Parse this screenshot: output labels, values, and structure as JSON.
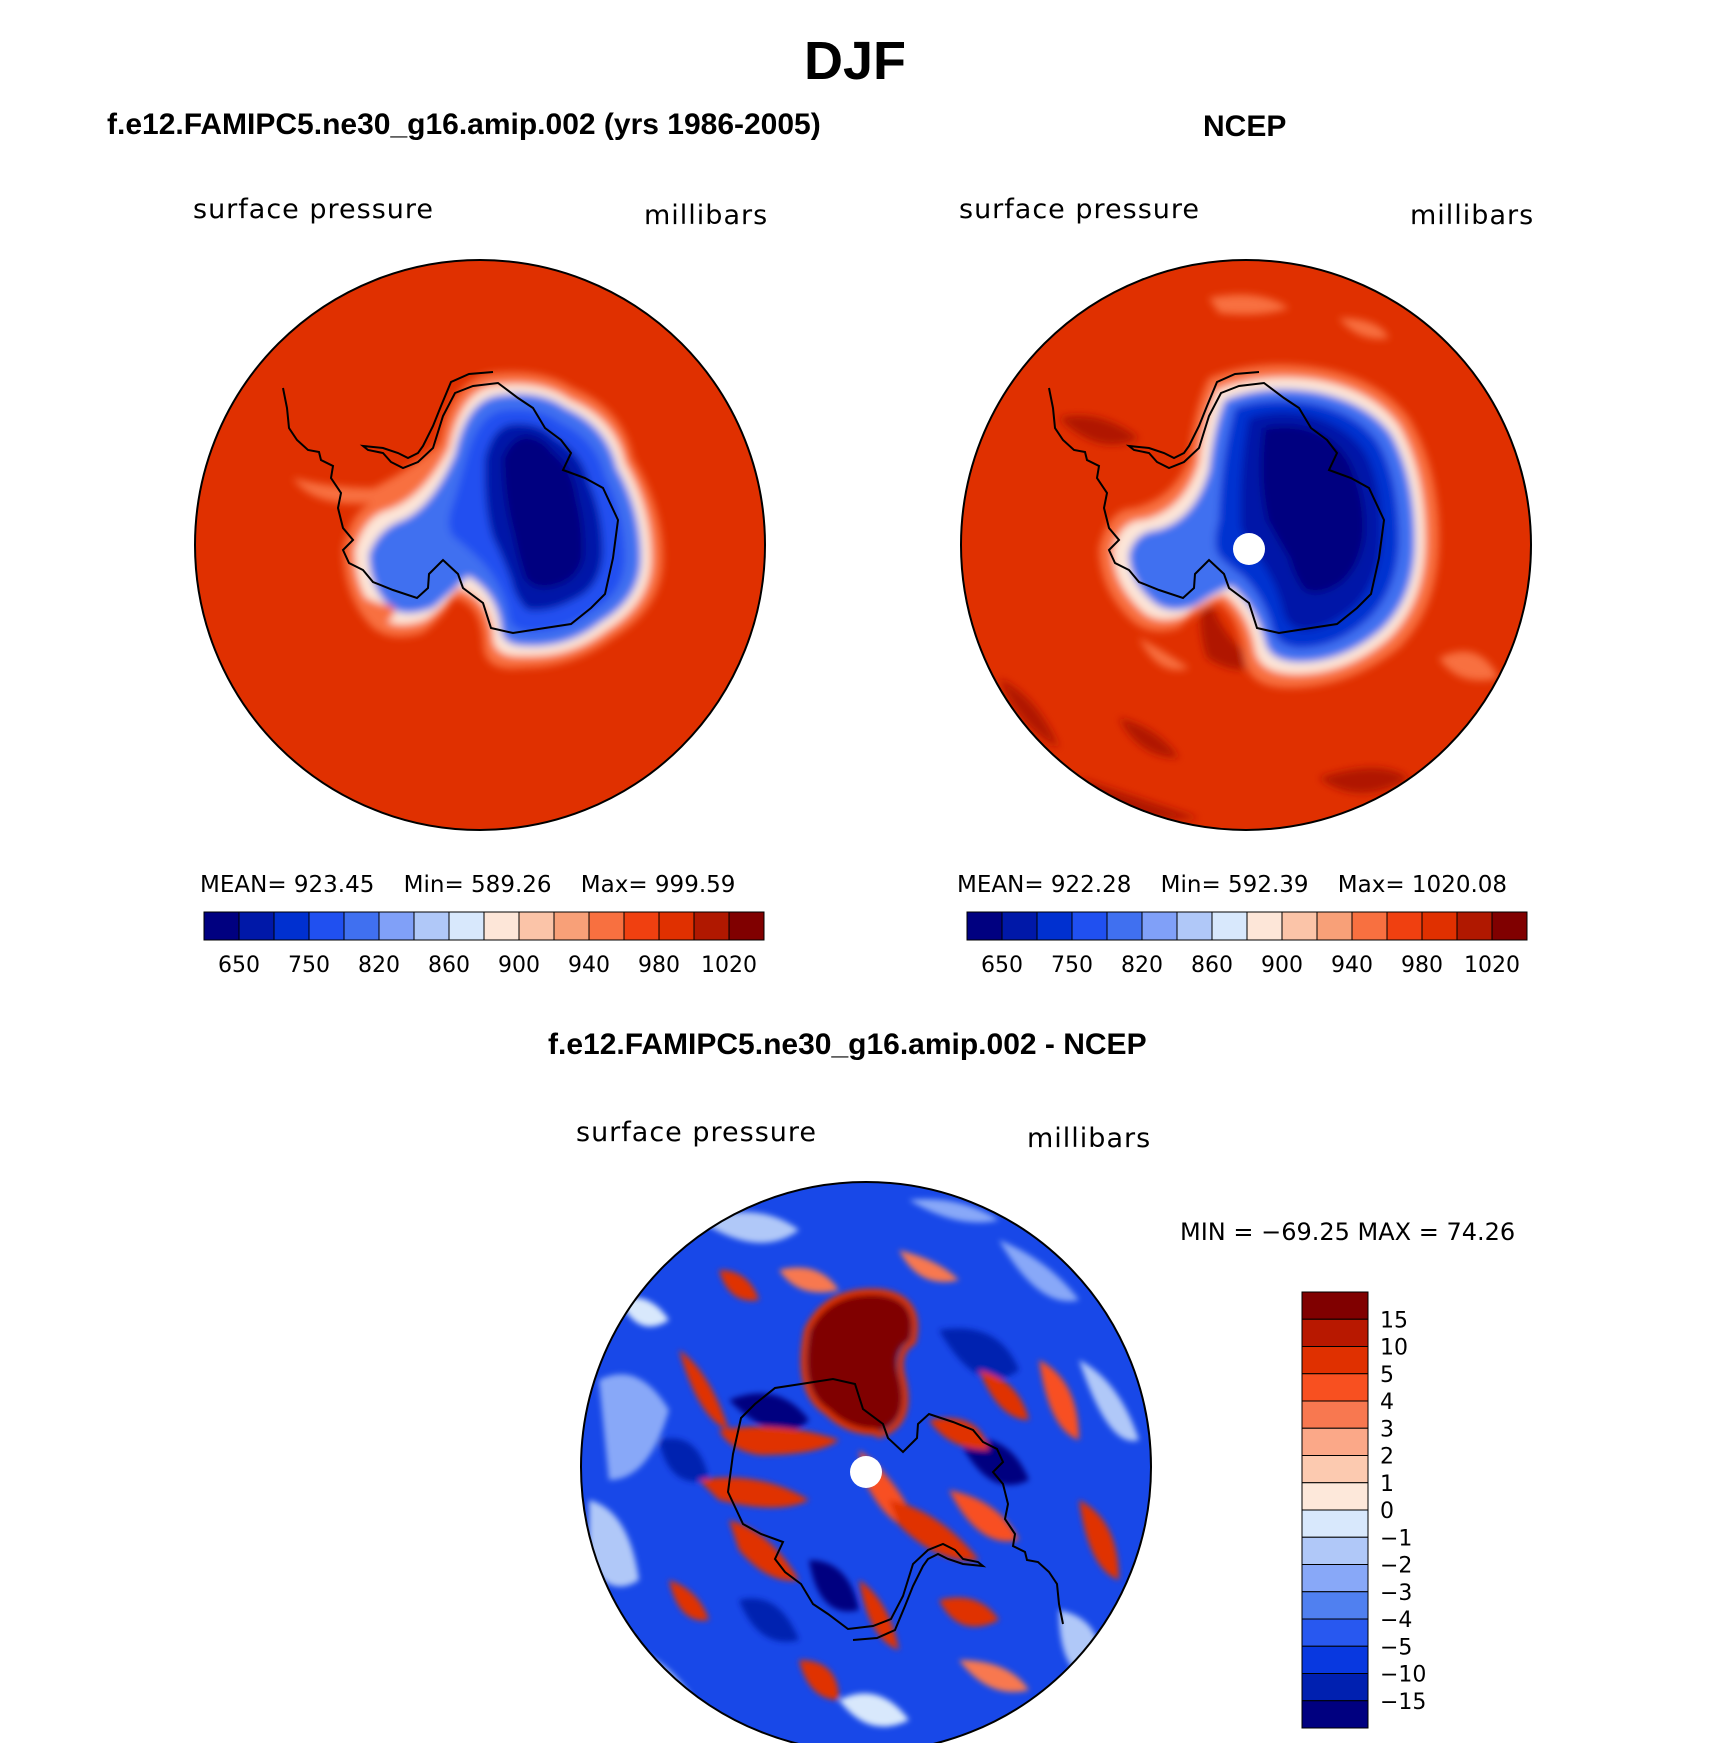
{
  "title": "DJF",
  "panels": [
    {
      "title": "f.e12.FAMIPC5.ne30_g16.amip.002 (yrs 1986-2005)",
      "left_label": "surface pressure",
      "right_label": "millibars",
      "stats": {
        "mean_label": "MEAN=",
        "mean": "923.45",
        "min_label": "Min=",
        "min": "589.26",
        "max_label": "Max=",
        "max": "999.59"
      }
    },
    {
      "title": "NCEP",
      "left_label": "surface pressure",
      "right_label": "millibars",
      "stats": {
        "mean_label": "MEAN=",
        "mean": "922.28",
        "min_label": "Min=",
        "min": "592.39",
        "max_label": "Max=",
        "max": "1020.08"
      }
    },
    {
      "title": "f.e12.FAMIPC5.ne30_g16.amip.002 - NCEP",
      "left_label": "surface pressure",
      "right_label": "millibars",
      "minmax_text": "MIN = −69.25  MAX =   74.26"
    }
  ],
  "chart_data": [
    {
      "type": "heatmap",
      "projection": "south-polar-stereographic",
      "field": "surface pressure",
      "units": "millibars",
      "colorbar": {
        "orientation": "horizontal",
        "colors": [
          "#000080",
          "#0018a8",
          "#0030d0",
          "#2050f0",
          "#4070f0",
          "#80a0f8",
          "#b0c8f8",
          "#d8e8fc",
          "#fde6d8",
          "#fbc4a8",
          "#f8a078",
          "#f87040",
          "#f04010",
          "#e03000",
          "#b01800",
          "#800000"
        ],
        "tick_labels": [
          "650",
          "750",
          "820",
          "860",
          "900",
          "940",
          "980",
          "1020"
        ]
      },
      "stats": {
        "mean": 923.45,
        "min": 589.26,
        "max": 999.59
      }
    },
    {
      "type": "heatmap",
      "projection": "south-polar-stereographic",
      "field": "surface pressure",
      "units": "millibars",
      "colorbar": {
        "orientation": "horizontal",
        "colors": [
          "#000080",
          "#0018a8",
          "#0030d0",
          "#2050f0",
          "#4070f0",
          "#80a0f8",
          "#b0c8f8",
          "#d8e8fc",
          "#fde6d8",
          "#fbc4a8",
          "#f8a078",
          "#f87040",
          "#f04010",
          "#e03000",
          "#b01800",
          "#800000"
        ],
        "tick_labels": [
          "650",
          "750",
          "820",
          "860",
          "900",
          "940",
          "980",
          "1020"
        ]
      },
      "stats": {
        "mean": 922.28,
        "min": 592.39,
        "max": 1020.08
      }
    },
    {
      "type": "heatmap",
      "projection": "south-polar-stereographic",
      "field": "surface pressure difference",
      "units": "millibars",
      "colorbar": {
        "orientation": "vertical",
        "colors": [
          "#800000",
          "#b81800",
          "#e03000",
          "#f85020",
          "#f87850",
          "#fba888",
          "#fccab0",
          "#fde8da",
          "#d8e8fc",
          "#b0c8f8",
          "#88a8f8",
          "#5080f0",
          "#2858f0",
          "#0838e0",
          "#0020b0",
          "#000080"
        ],
        "tick_labels": [
          "15",
          "10",
          "5",
          "4",
          "3",
          "2",
          "1",
          "0",
          "−1",
          "−2",
          "−3",
          "−4",
          "−5",
          "−10",
          "−15"
        ]
      },
      "stats": {
        "min": -69.25,
        "max": 74.26
      }
    }
  ]
}
